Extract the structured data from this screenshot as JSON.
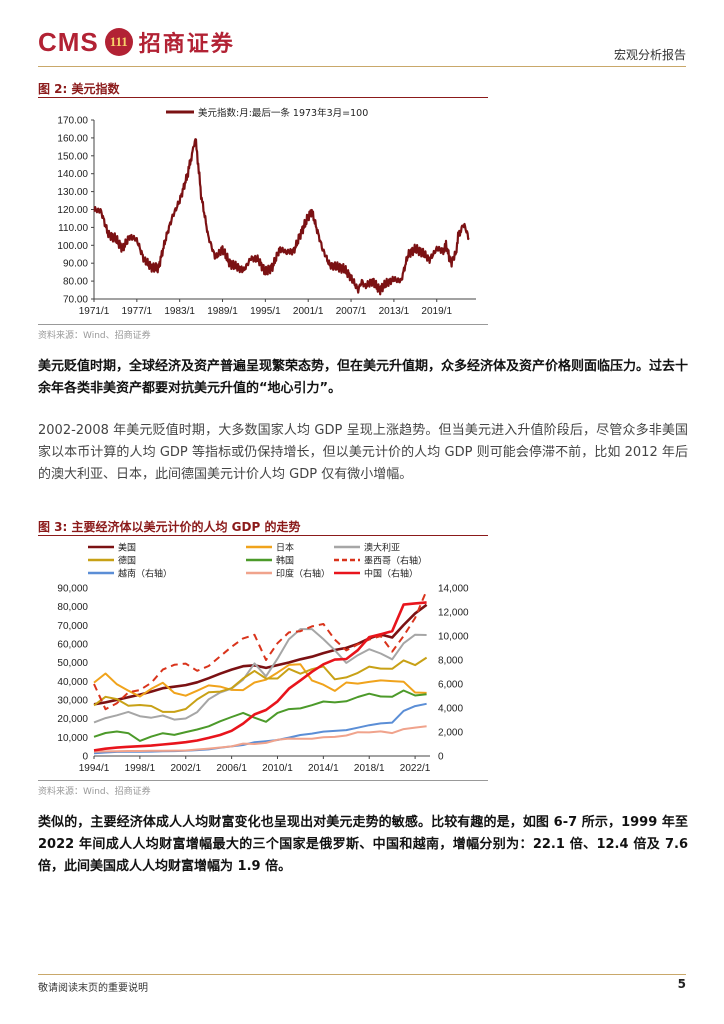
{
  "header": {
    "logo_text": "CMS",
    "logo_badge": "111",
    "logo_cn": "招商证券",
    "report_type": "宏观分析报告"
  },
  "figure2": {
    "title": "图 2:  美元指数",
    "source": "资料来源：Wind、招商证券"
  },
  "figure3": {
    "title": "图 3:  主要经济体以美元计价的人均 GDP 的走势",
    "source": "资料来源：Wind、招商证券"
  },
  "paragraphs": {
    "p1": "美元贬值时期，全球经济及资产普遍呈现繁荣态势，但在美元升值期，众多经济体及资产价格则面临压力。过去十余年各类非美资产都要对抗美元升值的“地心引力”。",
    "p2": "2002-2008 年美元贬值时期，大多数国家人均 GDP 呈现上涨趋势。但当美元进入升值阶段后，尽管众多非美国家以本币计算的人均 GDP 等指标或仍保持增长，但以美元计价的人均 GDP 则可能会停滞不前，比如 2012 年后的澳大利亚、日本，此间德国美元计价人均 GDP 仅有微小增幅。",
    "p3": "类似的，主要经济体成人人均财富变化也呈现出对美元走势的敏感。比较有趣的是，如图 6-7 所示，1999 年至 2022 年间成人人均财富增幅最大的三个国家是俄罗斯、中国和越南，增幅分别为：22.1 倍、12.4 倍及 7.6 倍，此间美国成人人均财富增幅为 1.9 倍。"
  },
  "footer": {
    "disclaimer": "敬请阅读末页的重要说明",
    "page": "5"
  },
  "chart_data": [
    {
      "type": "line",
      "title": "",
      "series_name": "美元指数:月:最后一条 1973年3月=100",
      "color": "#7b1113",
      "ylim": [
        70,
        170
      ],
      "yticks": [
        "70.00",
        "80.00",
        "90.00",
        "100.00",
        "110.00",
        "120.00",
        "130.00",
        "140.00",
        "150.00",
        "160.00",
        "170.00"
      ],
      "xticks": [
        "1971/1",
        "1977/1",
        "1983/1",
        "1989/1",
        "1995/1",
        "2001/1",
        "2007/1",
        "2013/1",
        "2019/1"
      ],
      "x": [
        1971.0,
        1972.0,
        1973.0,
        1974.0,
        1975.0,
        1976.0,
        1977.0,
        1978.0,
        1979.0,
        1980.0,
        1981.0,
        1981.5,
        1982.0,
        1983.0,
        1984.0,
        1984.8,
        1985.2,
        1985.6,
        1986.0,
        1987.0,
        1988.0,
        1989.0,
        1990.0,
        1991.0,
        1992.0,
        1993.0,
        1994.0,
        1995.0,
        1996.0,
        1997.0,
        1998.0,
        1999.0,
        2000.0,
        2001.0,
        2001.5,
        2002.0,
        2003.0,
        2004.0,
        2005.0,
        2006.0,
        2007.0,
        2008.0,
        2008.5,
        2009.0,
        2010.0,
        2011.0,
        2012.0,
        2013.0,
        2014.0,
        2015.0,
        2016.0,
        2017.0,
        2018.0,
        2019.0,
        2020.0,
        2020.3,
        2021.0,
        2021.7,
        2022.0,
        2022.8,
        2023.5
      ],
      "y": [
        120,
        119,
        106,
        104,
        98,
        105,
        103,
        92,
        88,
        87,
        103,
        110,
        116,
        125,
        138,
        152,
        160,
        145,
        128,
        105,
        93,
        98,
        90,
        88,
        86,
        93,
        92,
        85,
        88,
        98,
        96,
        97,
        107,
        116,
        119,
        112,
        98,
        89,
        88,
        87,
        82,
        75,
        80,
        77,
        80,
        75,
        79,
        81,
        80,
        95,
        98,
        96,
        92,
        98,
        97,
        100,
        90,
        96,
        105,
        112,
        104
      ]
    },
    {
      "type": "line",
      "title": "",
      "x": [
        1994,
        1995,
        1996,
        1997,
        1998,
        1999,
        2000,
        2001,
        2002,
        2003,
        2004,
        2005,
        2006,
        2007,
        2008,
        2009,
        2010,
        2011,
        2012,
        2013,
        2014,
        2015,
        2016,
        2017,
        2018,
        2019,
        2020,
        2021,
        2022,
        2023
      ],
      "xticks": [
        "1994/1",
        "1998/1",
        "2002/1",
        "2006/1",
        "2010/1",
        "2014/1",
        "2018/1",
        "2022/1"
      ],
      "left_ylim": [
        0,
        90000
      ],
      "left_yticks": [
        "0",
        "10,000",
        "20,000",
        "30,000",
        "40,000",
        "50,000",
        "60,000",
        "70,000",
        "80,000",
        "90,000"
      ],
      "right_ylim": [
        0,
        14000
      ],
      "right_yticks": [
        "0",
        "2,000",
        "4,000",
        "6,000",
        "8,000",
        "10,000",
        "12,000",
        "14,000"
      ],
      "series": [
        {
          "name": "美国",
          "axis": "left",
          "color": "#7b1113",
          "dash": "",
          "values": [
            27700,
            28700,
            30100,
            31500,
            32900,
            34500,
            36300,
            37100,
            38000,
            39500,
            41700,
            44100,
            46300,
            48100,
            48600,
            47200,
            48700,
            50100,
            51800,
            53200,
            55100,
            56800,
            57900,
            60100,
            63000,
            65100,
            63500,
            70200,
            76400,
            81000
          ]
        },
        {
          "name": "日本",
          "axis": "left",
          "color": "#f0a31c",
          "dash": "",
          "values": [
            39300,
            44200,
            38400,
            35000,
            31900,
            36000,
            39200,
            33800,
            32300,
            35000,
            37800,
            37200,
            35400,
            35300,
            39400,
            40900,
            44700,
            48800,
            49100,
            40500,
            38200,
            34900,
            39400,
            38800,
            39700,
            40500,
            40100,
            39800,
            34000,
            33800
          ]
        },
        {
          "name": "澳大利亚",
          "axis": "left",
          "color": "#a6a6a6",
          "dash": "",
          "values": [
            18000,
            20300,
            21800,
            23600,
            21300,
            20500,
            21700,
            19500,
            20100,
            23500,
            30400,
            34000,
            36100,
            40900,
            49600,
            42700,
            52100,
            62500,
            68000,
            68000,
            62600,
            56700,
            49900,
            54000,
            57200,
            54900,
            51800,
            60400,
            65000,
            64800
          ]
        },
        {
          "name": "德国",
          "axis": "left",
          "color": "#c8a116",
          "dash": "",
          "values": [
            27100,
            31700,
            30500,
            26900,
            27300,
            26800,
            23600,
            23600,
            25200,
            30300,
            34100,
            34500,
            36300,
            41500,
            45600,
            41500,
            41500,
            46700,
            44100,
            46500,
            48000,
            41100,
            42100,
            44500,
            47900,
            46800,
            46700,
            51200,
            48700,
            52700
          ]
        },
        {
          "name": "韩国",
          "axis": "left",
          "color": "#4c9a2a",
          "dash": "",
          "values": [
            10300,
            12300,
            13100,
            12200,
            8100,
            10400,
            12200,
            11300,
            12800,
            14200,
            15900,
            18600,
            20900,
            23100,
            20500,
            18300,
            23100,
            25100,
            25500,
            27200,
            29200,
            28700,
            29300,
            31600,
            33400,
            31900,
            31700,
            35100,
            32400,
            33100
          ]
        },
        {
          "name": "墨西哥（右轴）",
          "axis": "right",
          "color": "#d9331b",
          "dash": "7,5",
          "values": [
            6000,
            3900,
            4400,
            5300,
            5500,
            6100,
            7200,
            7600,
            7700,
            7100,
            7500,
            8300,
            9100,
            9800,
            10100,
            8000,
            9400,
            10300,
            10400,
            10800,
            11000,
            9700,
            8800,
            9300,
            9700,
            10000,
            8700,
            10000,
            11500,
            13800
          ]
        },
        {
          "name": "越南（右轴）",
          "axis": "right",
          "color": "#5b8ed6",
          "dash": "",
          "values": [
            230,
            290,
            340,
            360,
            360,
            370,
            390,
            410,
            440,
            490,
            550,
            690,
            800,
            920,
            1150,
            1230,
            1330,
            1530,
            1750,
            1870,
            2030,
            2090,
            2160,
            2360,
            2570,
            2720,
            2780,
            3760,
            4160,
            4350
          ]
        },
        {
          "name": "印度（右轴）",
          "axis": "right",
          "color": "#f0a38c",
          "dash": "",
          "values": [
            350,
            380,
            400,
            420,
            420,
            440,
            440,
            450,
            460,
            540,
            620,
            710,
            800,
            1030,
            1000,
            1090,
            1350,
            1450,
            1430,
            1440,
            1560,
            1590,
            1710,
            1980,
            1970,
            2050,
            1910,
            2240,
            2370,
            2480
          ]
        },
        {
          "name": "中国（右轴）",
          "axis": "right",
          "color": "#e8141c",
          "dash": "",
          "values": [
            470,
            610,
            700,
            770,
            820,
            870,
            960,
            1050,
            1150,
            1290,
            1510,
            1750,
            2100,
            2700,
            3470,
            3830,
            4550,
            5610,
            6300,
            7020,
            7640,
            8030,
            8080,
            8820,
            9910,
            10140,
            10410,
            12620,
            12720,
            12800
          ]
        }
      ]
    }
  ]
}
